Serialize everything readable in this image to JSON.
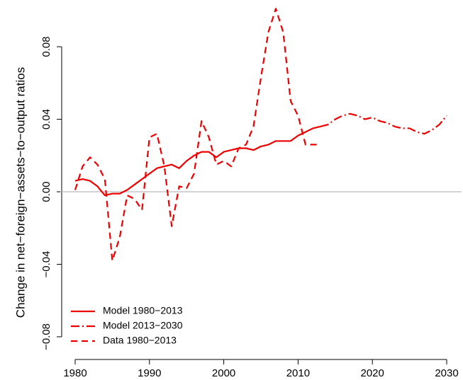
{
  "chart_data": {
    "type": "line",
    "ylabel": "Change in net−foreign−assets−to−output ratios",
    "xlim": [
      1978,
      2032
    ],
    "ylim": [
      -0.09,
      0.104
    ],
    "xticks": [
      1980,
      1990,
      2000,
      2010,
      2020,
      2030
    ],
    "yticks": [
      {
        "value": -0.08,
        "label": "−0.08"
      },
      {
        "value": -0.04,
        "label": "−0.04"
      },
      {
        "value": 0,
        "label": "0.00"
      },
      0.04,
      0.08
    ],
    "zero_line": true,
    "legend": "bottomleft",
    "series": [
      {
        "name": "Model 1980−2013",
        "color": "#ee0000",
        "style": "solid",
        "x": [
          1980,
          1981,
          1982,
          1983,
          1984,
          1985,
          1986,
          1987,
          1988,
          1989,
          1990,
          1991,
          1992,
          1993,
          1994,
          1995,
          1996,
          1997,
          1998,
          1999,
          2000,
          2001,
          2002,
          2003,
          2004,
          2005,
          2006,
          2007,
          2008,
          2009,
          2010,
          2011,
          2012,
          2013
        ],
        "values": [
          0.006,
          0.007,
          0.006,
          0.003,
          -0.002,
          -0.001,
          -0.001,
          0.001,
          0.004,
          0.007,
          0.01,
          0.013,
          0.014,
          0.015,
          0.013,
          0.017,
          0.02,
          0.022,
          0.022,
          0.019,
          0.022,
          0.023,
          0.024,
          0.024,
          0.023,
          0.025,
          0.026,
          0.028,
          0.028,
          0.028,
          0.031,
          0.033,
          0.035,
          0.036
        ]
      },
      {
        "name": "Model 2013−2030",
        "color": "#ee0000",
        "style": "dashdot",
        "x": [
          2013,
          2014,
          2015,
          2016,
          2017,
          2018,
          2019,
          2020,
          2021,
          2022,
          2023,
          2024,
          2025,
          2026,
          2027,
          2028,
          2029,
          2030
        ],
        "values": [
          0.036,
          0.037,
          0.04,
          0.042,
          0.043,
          0.042,
          0.04,
          0.041,
          0.039,
          0.038,
          0.036,
          0.035,
          0.035,
          0.033,
          0.032,
          0.034,
          0.037,
          0.042
        ]
      },
      {
        "name": "Data 1980−2013",
        "color": "#ee0000",
        "style": "dashed",
        "x": [
          1980,
          1981,
          1982,
          1983,
          1984,
          1985,
          1986,
          1987,
          1988,
          1989,
          1990,
          1991,
          1992,
          1993,
          1994,
          1995,
          1996,
          1997,
          1998,
          1999,
          2000,
          2001,
          2002,
          2003,
          2004,
          2005,
          2006,
          2007,
          2008,
          2009,
          2010,
          2011,
          2012,
          2013
        ],
        "values": [
          0.001,
          0.014,
          0.019,
          0.015,
          0.007,
          -0.038,
          -0.025,
          -0.002,
          -0.004,
          -0.01,
          0.03,
          0.032,
          0.014,
          -0.019,
          0.003,
          0.002,
          0.01,
          0.039,
          0.03,
          0.015,
          0.017,
          0.014,
          0.024,
          0.026,
          0.036,
          0.063,
          0.088,
          0.101,
          0.088,
          0.05,
          0.042,
          0.026,
          0.026,
          0.026
        ]
      }
    ]
  }
}
